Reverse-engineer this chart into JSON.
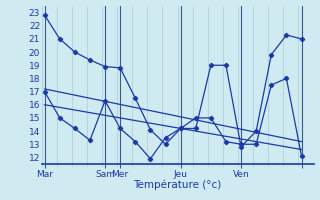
{
  "xlabel": "Température (°c)",
  "bg_color": "#d0eaf2",
  "grid_color": "#a8ccd8",
  "line_color": "#1a3aaa",
  "vline_color": "#3a5a8a",
  "ylim": [
    11.5,
    23.5
  ],
  "yticks": [
    12,
    13,
    14,
    15,
    16,
    17,
    18,
    19,
    20,
    21,
    22,
    23
  ],
  "xlim": [
    0,
    18
  ],
  "day_positions": [
    0.2,
    4.2,
    5.2,
    9.2,
    13.2,
    17.2
  ],
  "day_labels": [
    "Mar",
    "Sam",
    "Mer",
    "Jeu",
    "Ven",
    ""
  ],
  "vline_positions": [
    0.2,
    4.2,
    5.2,
    9.2,
    13.2,
    17.2
  ],
  "line1_x": [
    0.2,
    1.2,
    2.2,
    3.2,
    4.2,
    5.2,
    6.2,
    7.2,
    8.2,
    9.2,
    10.2,
    11.2,
    12.2,
    13.2,
    14.2,
    15.2,
    16.2,
    17.2
  ],
  "line1_y": [
    22.8,
    21.0,
    20.0,
    19.4,
    18.9,
    18.8,
    16.5,
    14.1,
    13.0,
    14.2,
    14.2,
    19.0,
    19.0,
    12.8,
    14.0,
    19.8,
    21.3,
    21.0
  ],
  "line2_x": [
    0.2,
    1.2,
    2.2,
    3.2,
    4.2,
    5.2,
    6.2,
    7.2,
    8.2,
    9.2,
    10.2,
    11.2,
    12.2,
    13.2,
    14.2,
    15.2,
    16.2,
    17.2
  ],
  "line2_y": [
    17.0,
    15.0,
    14.2,
    13.3,
    16.3,
    14.2,
    13.2,
    11.9,
    13.5,
    14.2,
    15.0,
    15.0,
    13.2,
    13.0,
    13.0,
    17.5,
    18.0,
    12.1
  ],
  "trend1_x": [
    0.2,
    17.2
  ],
  "trend1_y": [
    17.2,
    13.2
  ],
  "trend2_x": [
    0.2,
    17.2
  ],
  "trend2_y": [
    16.0,
    12.6
  ],
  "xlabel_fontsize": 7.5,
  "tick_fontsize": 6.5
}
